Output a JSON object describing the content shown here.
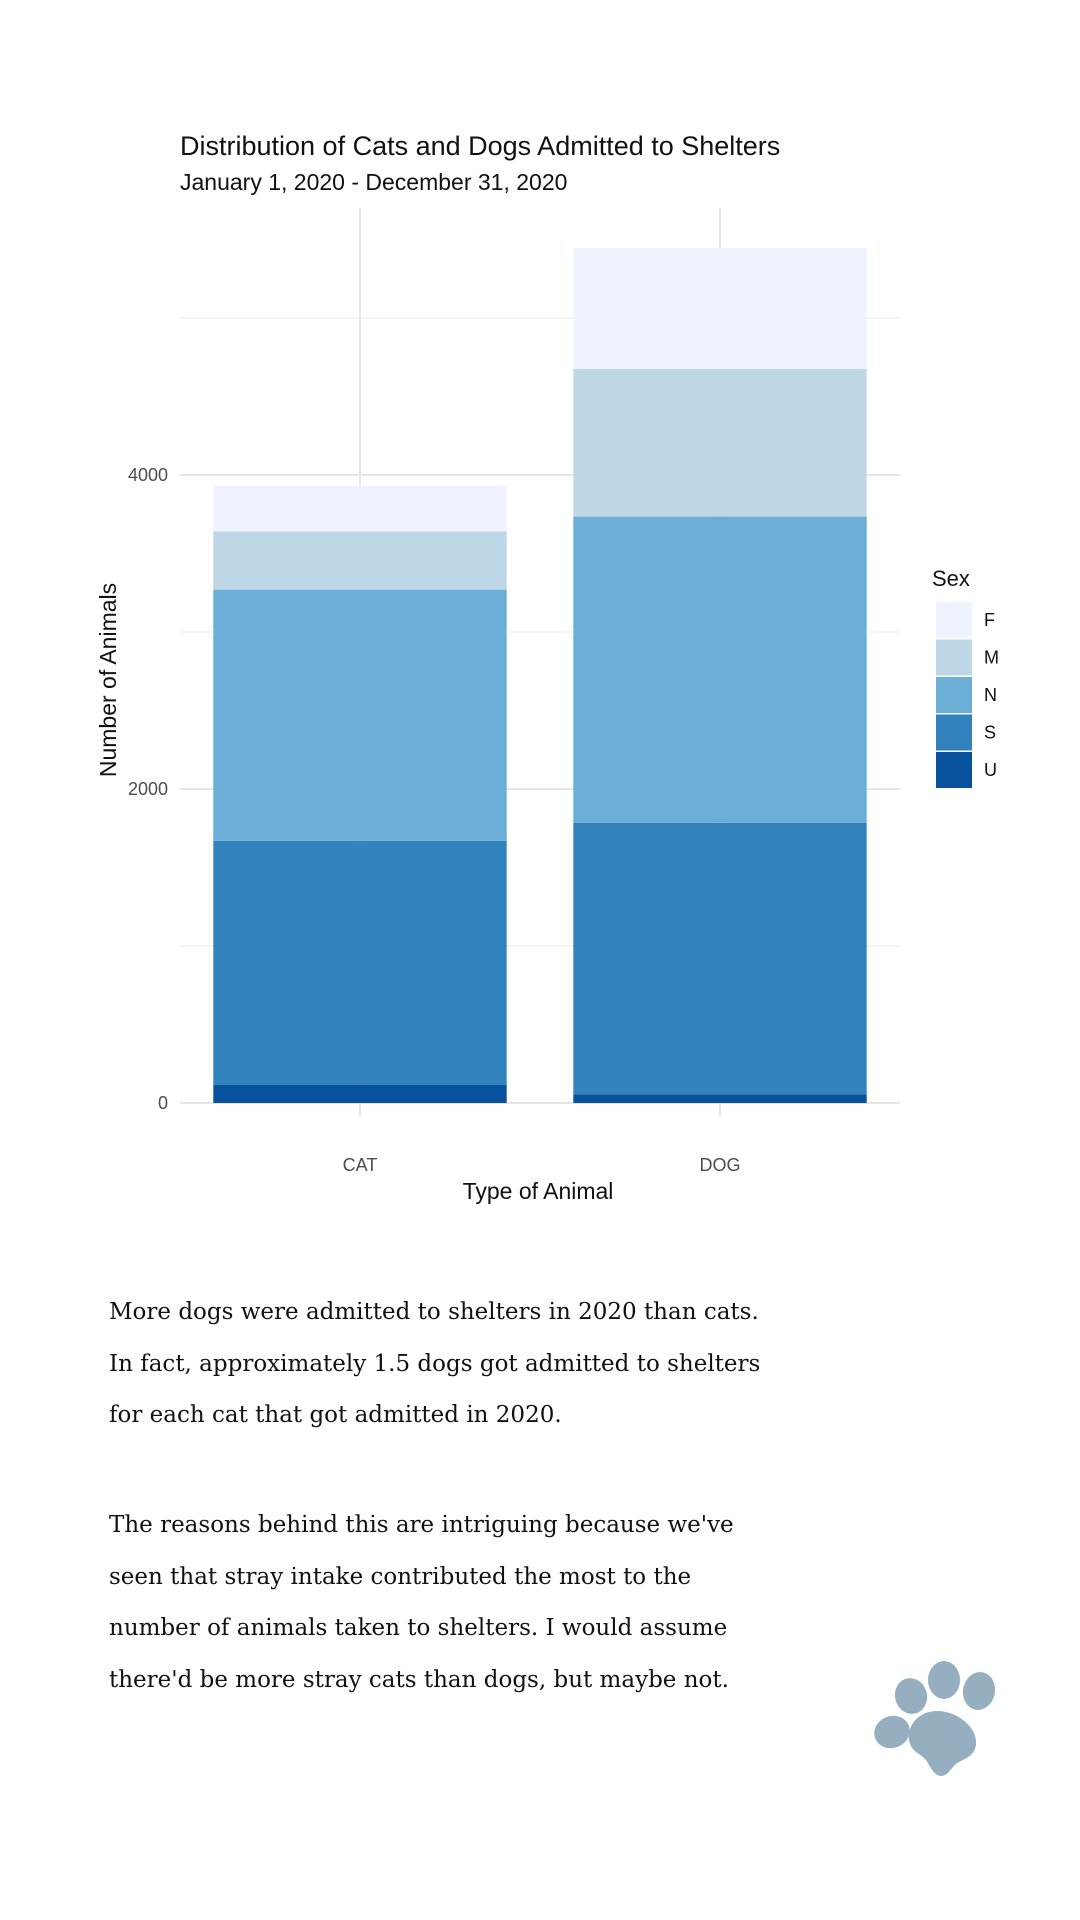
{
  "chart_data": {
    "type": "bar",
    "stacked": true,
    "title": "Distribution of Cats and Dogs Admitted to Shelters",
    "subtitle": "January 1, 2020 - December 31, 2020",
    "xlabel": "Type of Animal",
    "ylabel": "Number of Animals",
    "categories": [
      "CAT",
      "DOG"
    ],
    "ylim": [
      0,
      5700
    ],
    "yticks": [
      0,
      2000,
      4000
    ],
    "grid": true,
    "legend": {
      "title": "Sex",
      "placement": "right"
    },
    "series": [
      {
        "name": "U",
        "color": "#08519c",
        "values": [
          115,
          55
        ]
      },
      {
        "name": "S",
        "color": "#3182bd",
        "values": [
          1555,
          1730
        ]
      },
      {
        "name": "N",
        "color": "#6baed6",
        "values": [
          1600,
          1950
        ]
      },
      {
        "name": "M",
        "color": "#bdd7e7",
        "values": [
          370,
          940
        ]
      },
      {
        "name": "F",
        "color": "#eff3ff",
        "values": [
          290,
          770
        ]
      }
    ]
  },
  "narrative": {
    "paragraph1": "More dogs were admitted to shelters in 2020 than cats. In fact, approximately 1.5 dogs got admitted to shelters for each cat that got admitted in 2020.",
    "paragraph2": "The reasons behind this are intriguing because we've seen that stray intake contributed the most to the number of animals taken to shelters. I would assume there'd be more stray cats than dogs, but maybe not."
  },
  "decoration": {
    "icon": "paw-print-icon",
    "icon_color": "#95afc0"
  }
}
